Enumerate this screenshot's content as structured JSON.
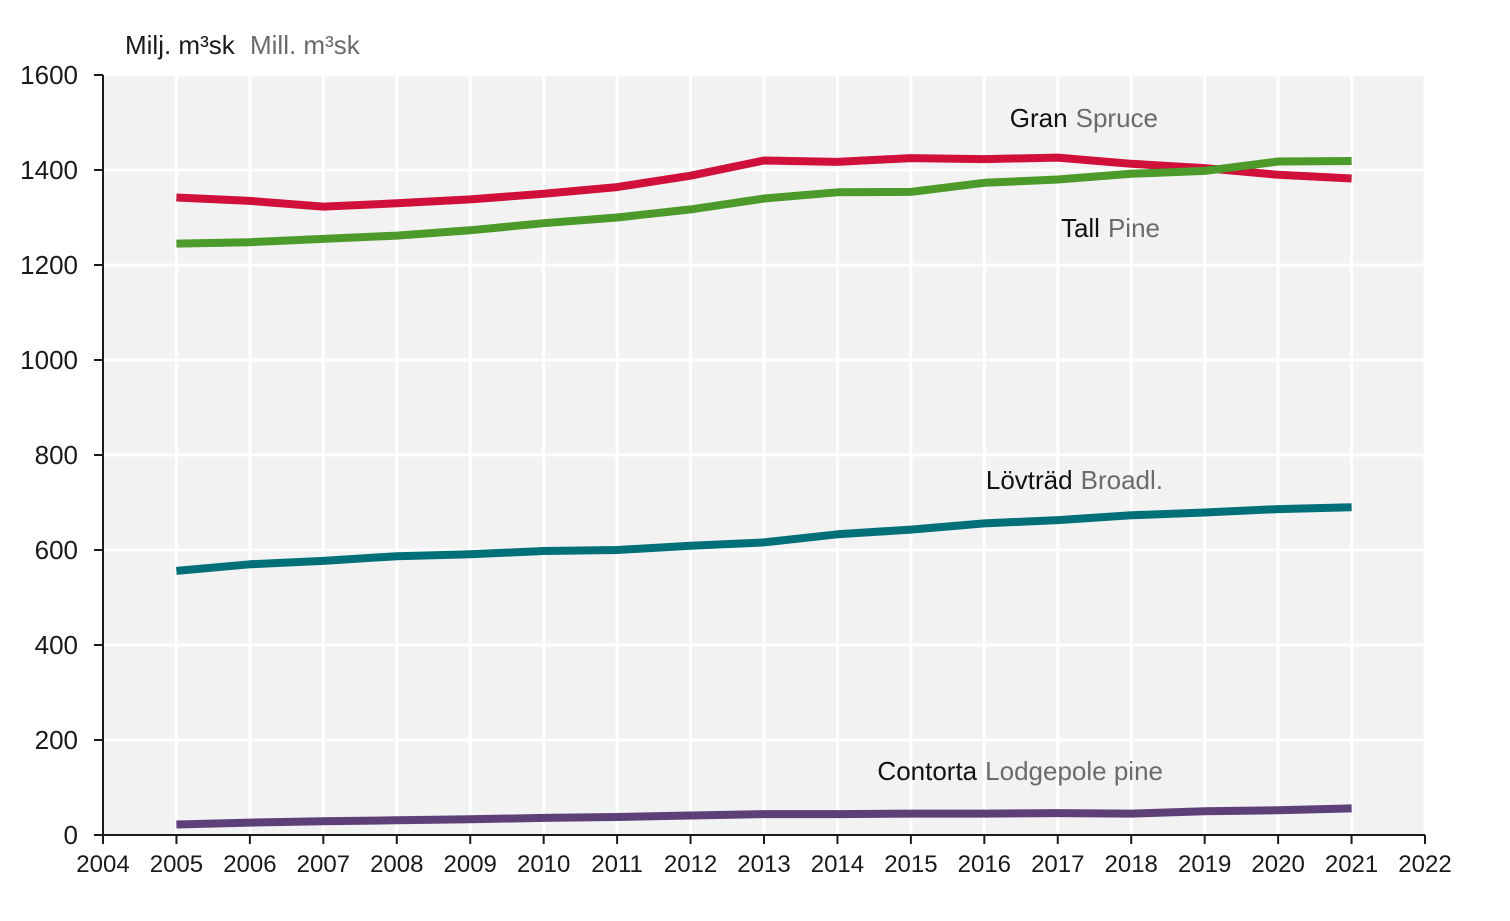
{
  "chart_data": {
    "type": "line",
    "ylabel": {
      "sv": "Milj. m³sk",
      "en": "Mill. m³sk"
    },
    "xlim": [
      2004,
      2022
    ],
    "ylim": [
      0,
      1600
    ],
    "x_ticks": [
      2004,
      2005,
      2006,
      2007,
      2008,
      2009,
      2010,
      2011,
      2012,
      2013,
      2014,
      2015,
      2016,
      2017,
      2018,
      2019,
      2020,
      2021,
      2022
    ],
    "y_ticks": [
      0,
      200,
      400,
      600,
      800,
      1000,
      1200,
      1400,
      1600
    ],
    "grid": true,
    "x": [
      2005,
      2006,
      2007,
      2008,
      2009,
      2010,
      2011,
      2012,
      2013,
      2014,
      2015,
      2016,
      2017,
      2018,
      2019,
      2020,
      2021
    ],
    "series": [
      {
        "name": "Gran",
        "name_en": "Spruce",
        "color": "#d0103a",
        "values": [
          1342,
          1335,
          1323,
          1330,
          1338,
          1350,
          1364,
          1388,
          1420,
          1417,
          1425,
          1423,
          1426,
          1413,
          1404,
          1390,
          1382
        ]
      },
      {
        "name": "Tall",
        "name_en": "Pine",
        "color": "#4c9a2a",
        "values": [
          1245,
          1248,
          1255,
          1262,
          1273,
          1288,
          1300,
          1317,
          1340,
          1353,
          1354,
          1373,
          1380,
          1392,
          1398,
          1418,
          1419
        ]
      },
      {
        "name": "Lövträd",
        "name_en": "Broadl.",
        "color": "#007078",
        "values": [
          556,
          570,
          577,
          587,
          591,
          598,
          600,
          609,
          616,
          633,
          643,
          656,
          663,
          673,
          679,
          686,
          690
        ]
      },
      {
        "name": "Contorta",
        "name_en": "Lodgepole pine",
        "color": "#5e4078",
        "values": [
          22,
          26,
          29,
          31,
          33,
          36,
          38,
          41,
          44,
          44,
          45,
          45,
          46,
          45,
          50,
          52,
          56
        ]
      }
    ]
  }
}
